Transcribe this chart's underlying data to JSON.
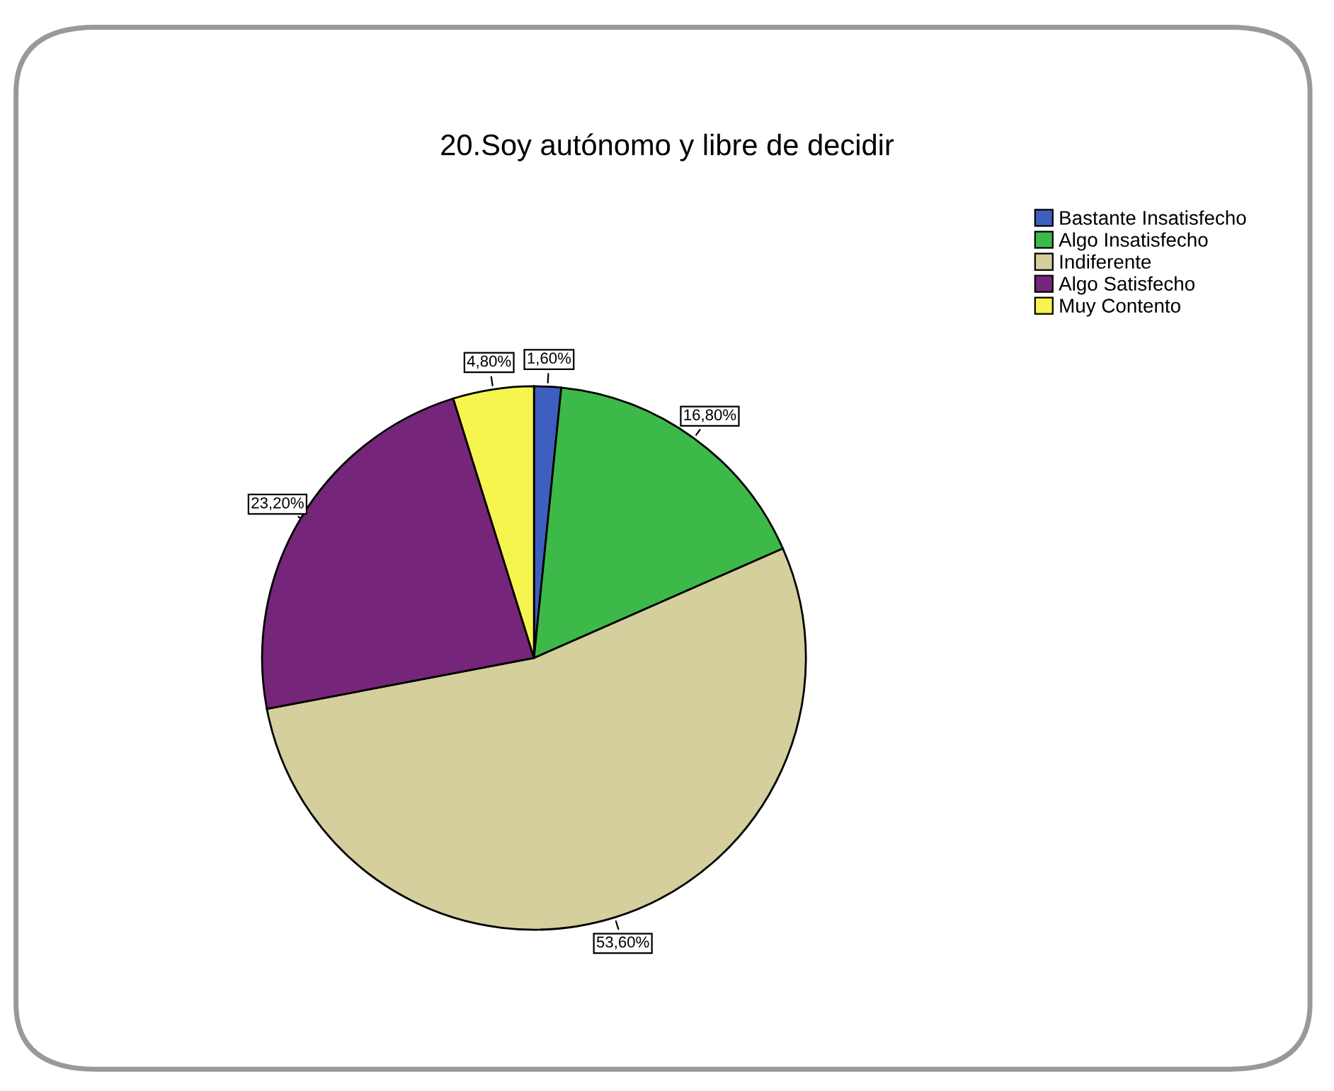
{
  "chart_data": {
    "type": "pie",
    "title": "20.Soy autónomo y libre de decidir",
    "categories": [
      "Bastante Insatisfecho",
      "Algo Insatisfecho",
      "Indiferente",
      "Algo Satisfecho",
      "Muy Contento"
    ],
    "values": [
      1.6,
      16.8,
      53.6,
      23.2,
      4.8
    ],
    "value_labels": [
      "1,60%",
      "16,80%",
      "53,60%",
      "23,20%",
      "4,80%"
    ],
    "colors": [
      "#3e5fbf",
      "#3db94a",
      "#d4cf9c",
      "#76267a",
      "#f6f550"
    ],
    "legend": "top right"
  }
}
